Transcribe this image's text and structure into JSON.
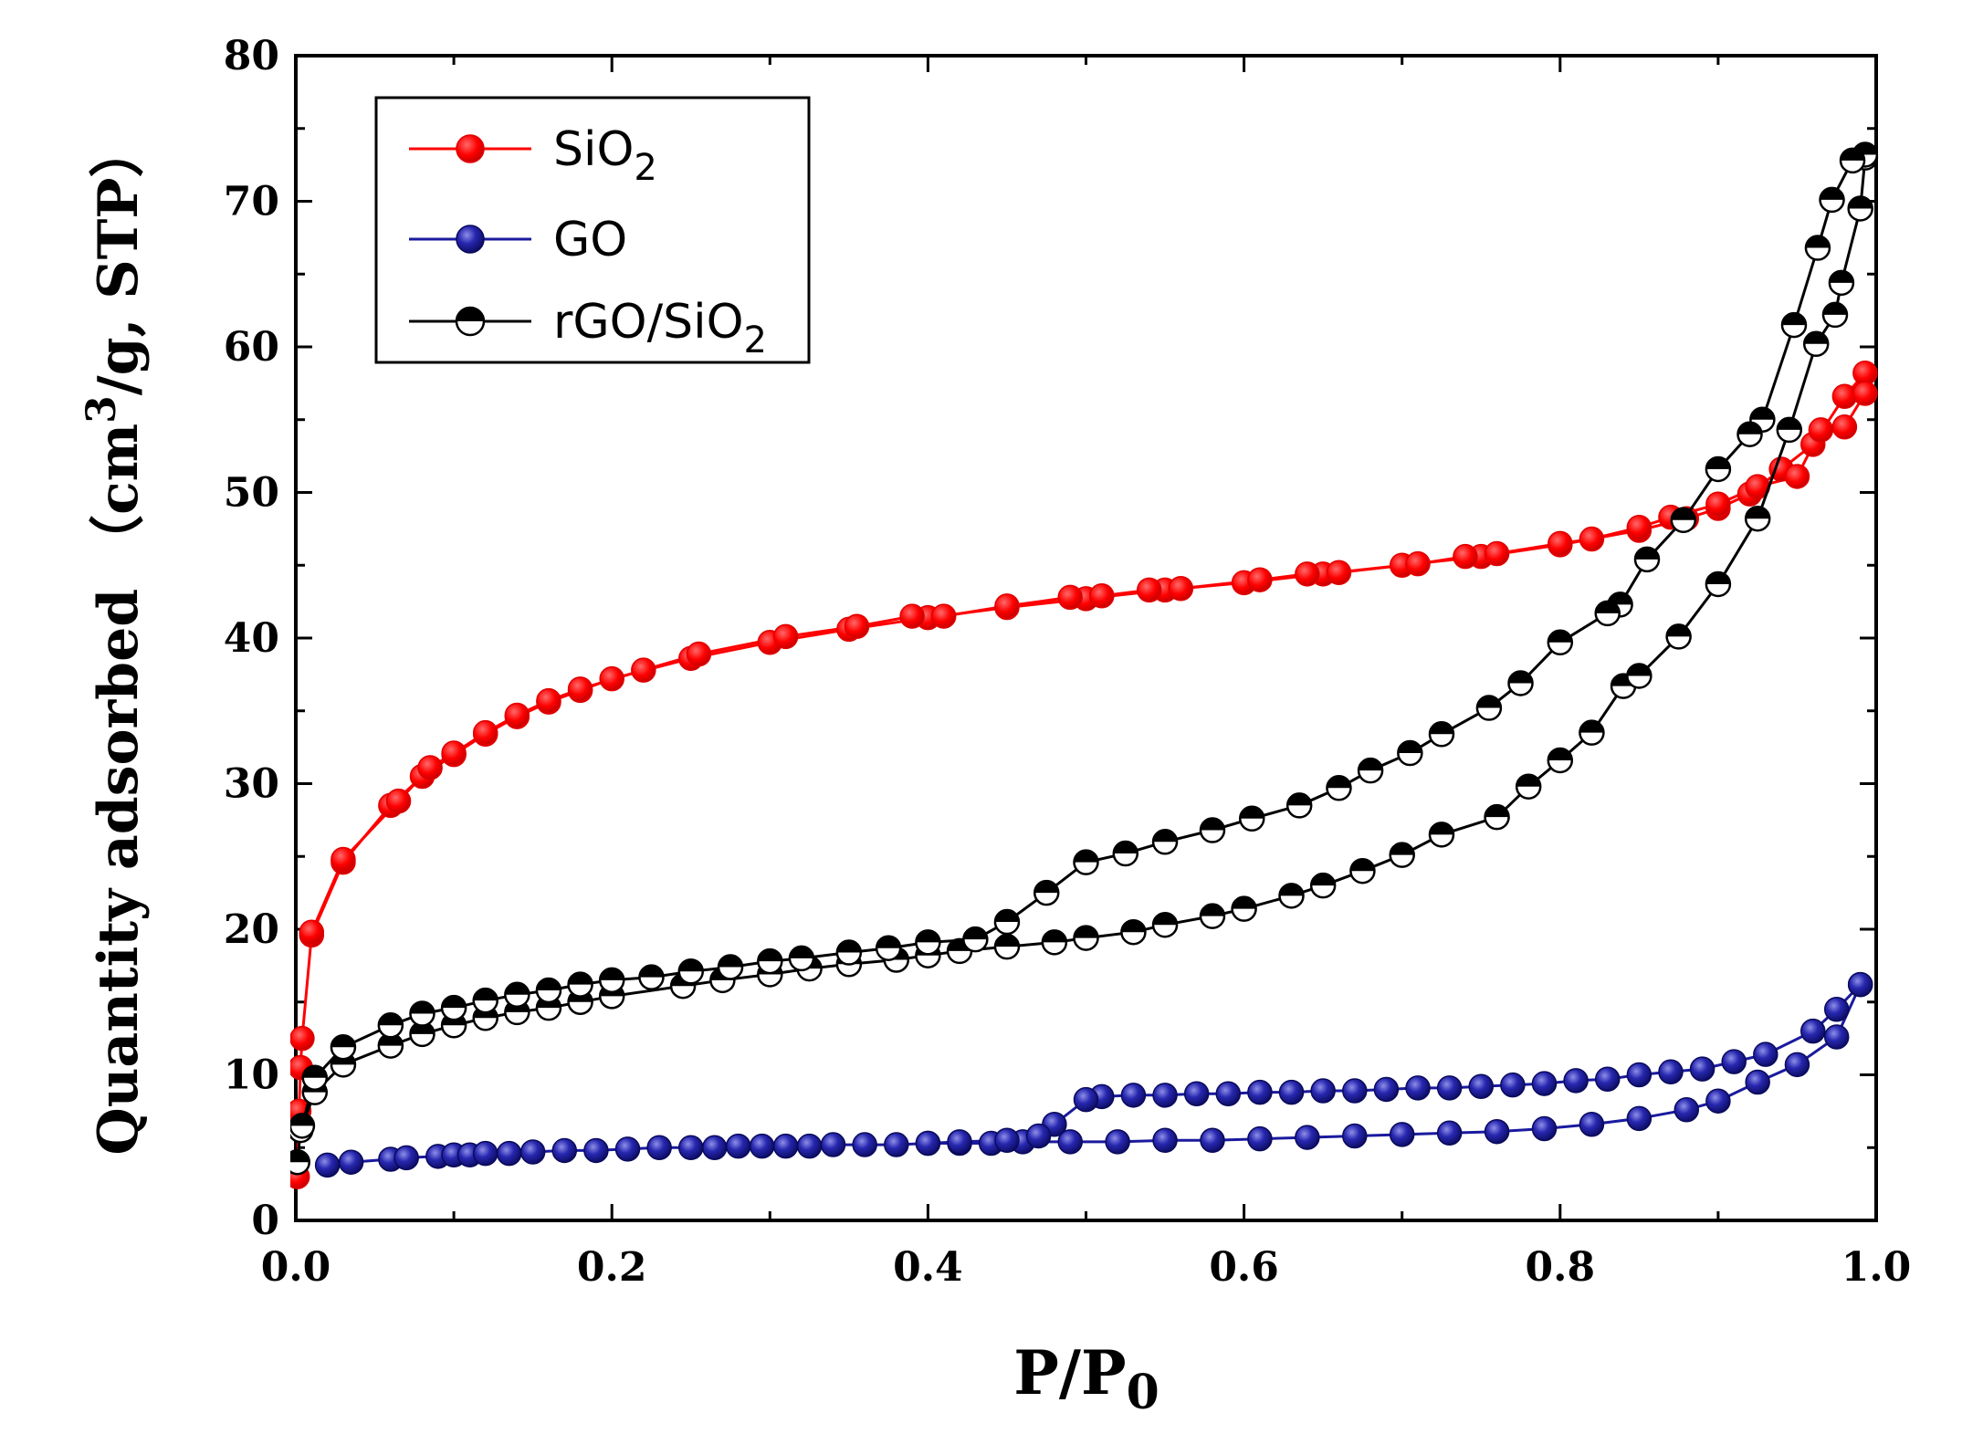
{
  "chart_data": {
    "type": "scatter",
    "title": "",
    "xlabel": {
      "main": "P/P",
      "sub": "0"
    },
    "ylabel": {
      "pre": "Quantity adsorbed （cm",
      "sup": "3",
      "post": "/g,  STP）"
    },
    "xlim": [
      0.0,
      1.0
    ],
    "ylim": [
      0,
      80
    ],
    "grid": false,
    "legend_position": "top-left",
    "x_ticks": [
      "0.0",
      "0.2",
      "0.4",
      "0.6",
      "0.8",
      "1.0"
    ],
    "y_ticks": [
      "0",
      "10",
      "20",
      "30",
      "40",
      "50",
      "60",
      "70",
      "80"
    ],
    "series": [
      {
        "name": "SiO2",
        "legend": {
          "main": "SiO",
          "sub": "2"
        },
        "color": "#ff0000",
        "marker": "filled-circle",
        "adsorption": [
          [
            0.001,
            3.0
          ],
          [
            0.002,
            7.5
          ],
          [
            0.003,
            10.5
          ],
          [
            0.004,
            12.5
          ],
          [
            0.01,
            19.6
          ],
          [
            0.03,
            24.6
          ],
          [
            0.06,
            28.5
          ],
          [
            0.08,
            30.5
          ],
          [
            0.1,
            32.0
          ],
          [
            0.12,
            33.4
          ],
          [
            0.14,
            34.6
          ],
          [
            0.16,
            35.6
          ],
          [
            0.18,
            36.4
          ],
          [
            0.2,
            37.2
          ],
          [
            0.25,
            38.6
          ],
          [
            0.3,
            39.7
          ],
          [
            0.35,
            40.6
          ],
          [
            0.4,
            41.4
          ],
          [
            0.45,
            42.1
          ],
          [
            0.5,
            42.7
          ],
          [
            0.55,
            43.3
          ],
          [
            0.6,
            43.8
          ],
          [
            0.65,
            44.4
          ],
          [
            0.7,
            45.0
          ],
          [
            0.75,
            45.6
          ],
          [
            0.8,
            46.4
          ],
          [
            0.85,
            47.4
          ],
          [
            0.88,
            48.2
          ],
          [
            0.9,
            48.9
          ],
          [
            0.92,
            49.9
          ],
          [
            0.94,
            51.6
          ],
          [
            0.96,
            53.3
          ],
          [
            0.98,
            56.6
          ],
          [
            0.993,
            58.2
          ]
        ],
        "desorption": [
          [
            0.993,
            56.8
          ],
          [
            0.98,
            54.5
          ],
          [
            0.965,
            54.3
          ],
          [
            0.95,
            51.1
          ],
          [
            0.925,
            50.4
          ],
          [
            0.9,
            49.2
          ],
          [
            0.87,
            48.3
          ],
          [
            0.85,
            47.6
          ],
          [
            0.82,
            46.8
          ],
          [
            0.8,
            46.5
          ],
          [
            0.76,
            45.8
          ],
          [
            0.74,
            45.6
          ],
          [
            0.71,
            45.1
          ],
          [
            0.66,
            44.5
          ],
          [
            0.64,
            44.4
          ],
          [
            0.61,
            44.0
          ],
          [
            0.56,
            43.4
          ],
          [
            0.54,
            43.3
          ],
          [
            0.51,
            42.9
          ],
          [
            0.49,
            42.8
          ],
          [
            0.45,
            42.2
          ],
          [
            0.41,
            41.5
          ],
          [
            0.39,
            41.5
          ],
          [
            0.355,
            40.8
          ],
          [
            0.31,
            40.1
          ],
          [
            0.255,
            38.9
          ],
          [
            0.22,
            37.8
          ],
          [
            0.18,
            36.5
          ],
          [
            0.16,
            35.7
          ],
          [
            0.14,
            34.7
          ],
          [
            0.12,
            33.5
          ],
          [
            0.1,
            32.1
          ],
          [
            0.085,
            31.1
          ],
          [
            0.065,
            28.8
          ],
          [
            0.03,
            24.8
          ],
          [
            0.01,
            19.8
          ]
        ]
      },
      {
        "name": "GO",
        "legend": {
          "main": "GO",
          "sub": ""
        },
        "color": "#1a1a9e",
        "marker": "shaded-sphere",
        "adsorption": [
          [
            0.02,
            3.8
          ],
          [
            0.035,
            4.0
          ],
          [
            0.06,
            4.2
          ],
          [
            0.07,
            4.3
          ],
          [
            0.09,
            4.4
          ],
          [
            0.1,
            4.5
          ],
          [
            0.11,
            4.5
          ],
          [
            0.12,
            4.6
          ],
          [
            0.135,
            4.6
          ],
          [
            0.15,
            4.7
          ],
          [
            0.17,
            4.8
          ],
          [
            0.19,
            4.8
          ],
          [
            0.21,
            4.9
          ],
          [
            0.23,
            5.0
          ],
          [
            0.25,
            5.0
          ],
          [
            0.265,
            5.0
          ],
          [
            0.28,
            5.1
          ],
          [
            0.295,
            5.1
          ],
          [
            0.31,
            5.1
          ],
          [
            0.325,
            5.1
          ],
          [
            0.34,
            5.2
          ],
          [
            0.36,
            5.2
          ],
          [
            0.38,
            5.2
          ],
          [
            0.4,
            5.3
          ],
          [
            0.42,
            5.3
          ],
          [
            0.44,
            5.3
          ],
          [
            0.46,
            5.4
          ],
          [
            0.49,
            5.4
          ],
          [
            0.52,
            5.4
          ],
          [
            0.55,
            5.5
          ],
          [
            0.58,
            5.5
          ],
          [
            0.61,
            5.6
          ],
          [
            0.64,
            5.7
          ],
          [
            0.67,
            5.8
          ],
          [
            0.7,
            5.9
          ],
          [
            0.73,
            6.0
          ],
          [
            0.76,
            6.1
          ],
          [
            0.79,
            6.3
          ],
          [
            0.82,
            6.6
          ],
          [
            0.85,
            7.0
          ],
          [
            0.88,
            7.6
          ],
          [
            0.9,
            8.2
          ],
          [
            0.925,
            9.5
          ],
          [
            0.95,
            10.7
          ],
          [
            0.975,
            12.6
          ],
          [
            0.99,
            16.2
          ]
        ],
        "desorption": [
          [
            0.99,
            16.2
          ],
          [
            0.975,
            14.5
          ],
          [
            0.96,
            13.0
          ],
          [
            0.93,
            11.4
          ],
          [
            0.91,
            10.9
          ],
          [
            0.89,
            10.4
          ],
          [
            0.87,
            10.2
          ],
          [
            0.85,
            10.0
          ],
          [
            0.83,
            9.7
          ],
          [
            0.81,
            9.6
          ],
          [
            0.79,
            9.4
          ],
          [
            0.77,
            9.3
          ],
          [
            0.75,
            9.2
          ],
          [
            0.73,
            9.1
          ],
          [
            0.71,
            9.1
          ],
          [
            0.69,
            9.0
          ],
          [
            0.67,
            8.9
          ],
          [
            0.65,
            8.9
          ],
          [
            0.63,
            8.8
          ],
          [
            0.61,
            8.8
          ],
          [
            0.59,
            8.7
          ],
          [
            0.57,
            8.7
          ],
          [
            0.55,
            8.6
          ],
          [
            0.53,
            8.6
          ],
          [
            0.51,
            8.5
          ],
          [
            0.5,
            8.3
          ],
          [
            0.48,
            6.6
          ],
          [
            0.47,
            5.8
          ],
          [
            0.45,
            5.5
          ],
          [
            0.42,
            5.4
          ],
          [
            0.4,
            5.3
          ]
        ]
      },
      {
        "name": "rGO/SiO2",
        "legend": {
          "main": "rGO/SiO",
          "sub": "2"
        },
        "color": "#000000",
        "marker": "half-filled-circle",
        "adsorption": [
          [
            0.001,
            4.0
          ],
          [
            0.003,
            6.2
          ],
          [
            0.012,
            8.8
          ],
          [
            0.03,
            10.7
          ],
          [
            0.06,
            12.0
          ],
          [
            0.08,
            12.8
          ],
          [
            0.1,
            13.4
          ],
          [
            0.12,
            13.9
          ],
          [
            0.14,
            14.3
          ],
          [
            0.16,
            14.6
          ],
          [
            0.18,
            15.0
          ],
          [
            0.2,
            15.4
          ],
          [
            0.245,
            16.1
          ],
          [
            0.27,
            16.5
          ],
          [
            0.3,
            16.9
          ],
          [
            0.325,
            17.3
          ],
          [
            0.35,
            17.6
          ],
          [
            0.38,
            17.9
          ],
          [
            0.4,
            18.2
          ],
          [
            0.42,
            18.5
          ],
          [
            0.45,
            18.8
          ],
          [
            0.48,
            19.1
          ],
          [
            0.5,
            19.4
          ],
          [
            0.53,
            19.8
          ],
          [
            0.55,
            20.3
          ],
          [
            0.58,
            20.9
          ],
          [
            0.6,
            21.4
          ],
          [
            0.63,
            22.3
          ],
          [
            0.65,
            23.0
          ],
          [
            0.675,
            24.0
          ],
          [
            0.7,
            25.1
          ],
          [
            0.725,
            26.5
          ],
          [
            0.76,
            27.7
          ],
          [
            0.78,
            29.8
          ],
          [
            0.8,
            31.6
          ],
          [
            0.82,
            33.5
          ],
          [
            0.84,
            36.7
          ],
          [
            0.85,
            37.4
          ],
          [
            0.875,
            40.1
          ],
          [
            0.9,
            43.7
          ],
          [
            0.925,
            48.2
          ],
          [
            0.945,
            54.3
          ],
          [
            0.962,
            60.2
          ],
          [
            0.974,
            62.2
          ],
          [
            0.978,
            64.4
          ],
          [
            0.99,
            69.5
          ],
          [
            0.993,
            73.0
          ]
        ],
        "desorption": [
          [
            0.993,
            73.2
          ],
          [
            0.985,
            72.8
          ],
          [
            0.972,
            70.1
          ],
          [
            0.963,
            66.8
          ],
          [
            0.948,
            61.5
          ],
          [
            0.928,
            55.0
          ],
          [
            0.92,
            54.0
          ],
          [
            0.9,
            51.6
          ],
          [
            0.878,
            48.1
          ],
          [
            0.855,
            45.4
          ],
          [
            0.838,
            42.3
          ],
          [
            0.83,
            41.7
          ],
          [
            0.8,
            39.7
          ],
          [
            0.775,
            36.9
          ],
          [
            0.755,
            35.2
          ],
          [
            0.725,
            33.4
          ],
          [
            0.705,
            32.1
          ],
          [
            0.68,
            30.9
          ],
          [
            0.66,
            29.7
          ],
          [
            0.635,
            28.5
          ],
          [
            0.605,
            27.6
          ],
          [
            0.58,
            26.8
          ],
          [
            0.55,
            26.0
          ],
          [
            0.525,
            25.2
          ],
          [
            0.5,
            24.6
          ],
          [
            0.475,
            22.5
          ],
          [
            0.45,
            20.5
          ],
          [
            0.43,
            19.3
          ],
          [
            0.4,
            19.1
          ],
          [
            0.375,
            18.7
          ],
          [
            0.35,
            18.4
          ],
          [
            0.32,
            18.0
          ],
          [
            0.3,
            17.8
          ],
          [
            0.275,
            17.4
          ],
          [
            0.25,
            17.1
          ],
          [
            0.225,
            16.7
          ],
          [
            0.2,
            16.5
          ],
          [
            0.18,
            16.2
          ],
          [
            0.16,
            15.8
          ],
          [
            0.14,
            15.5
          ],
          [
            0.12,
            15.1
          ],
          [
            0.1,
            14.6
          ],
          [
            0.08,
            14.2
          ],
          [
            0.06,
            13.4
          ],
          [
            0.03,
            11.9
          ],
          [
            0.012,
            9.8
          ],
          [
            0.004,
            6.5
          ]
        ]
      }
    ]
  }
}
